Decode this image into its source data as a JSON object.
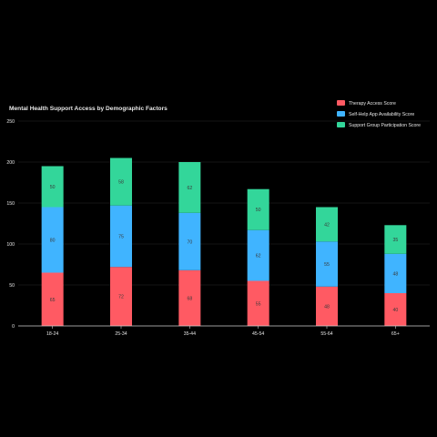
{
  "colors": {
    "background": "#000000",
    "text": "#e6e6e6",
    "axis": "#cfcfcf",
    "grid": "#2a2a2a",
    "label": "#3a3a3a"
  },
  "chart_data": {
    "type": "bar",
    "stacked": true,
    "title": "Mental Health Support Access by Demographic Factors",
    "xlabel": "",
    "ylabel": "",
    "categories": [
      "18-24",
      "25-34",
      "35-44",
      "45-54",
      "55-64",
      "65+"
    ],
    "ylim": [
      0,
      250
    ],
    "yticks": [
      0,
      50,
      100,
      150,
      200,
      250
    ],
    "grid": true,
    "legend_position": "top-right",
    "series": [
      {
        "name": "Therapy Access Score",
        "color": "#ff5a63",
        "values": [
          65,
          72,
          68,
          55,
          48,
          40
        ]
      },
      {
        "name": "Self-Help App Availability Score",
        "color": "#40b4ff",
        "values": [
          80,
          75,
          70,
          62,
          55,
          48
        ]
      },
      {
        "name": "Support Group Participation Score",
        "color": "#33d69a",
        "values": [
          50,
          58,
          62,
          50,
          42,
          35
        ]
      }
    ]
  }
}
